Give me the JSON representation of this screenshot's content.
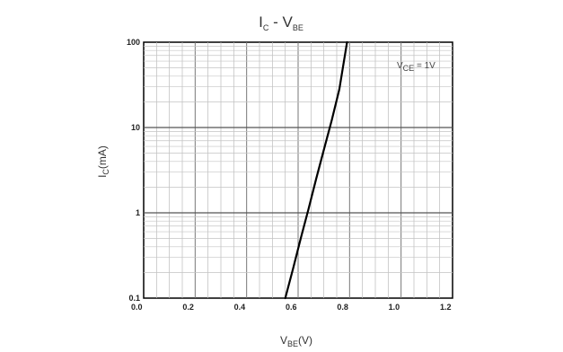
{
  "chart_data": {
    "type": "line",
    "title": "I",
    "title_sub_1": "C",
    "title_mid": " - V",
    "title_sub_2": "BE",
    "xlabel": "V",
    "xlabel_sub": "BE",
    "xlabel_unit": "(V)",
    "ylabel": "I",
    "ylabel_sub": "C",
    "ylabel_unit": "(mA)",
    "annotation": "V",
    "annotation_sub": "CE",
    "annotation_rest": " = 1V",
    "x_scale": "linear",
    "y_scale": "log",
    "xlim": [
      0.0,
      1.2
    ],
    "ylim": [
      0.1,
      100
    ],
    "grid": true,
    "x_ticks": [
      "0.0",
      "0.2",
      "0.4",
      "0.6",
      "0.8",
      "1.0",
      "1.2"
    ],
    "y_ticks": [
      "0.1",
      "1",
      "10",
      "100"
    ],
    "series": [
      {
        "x": [
          0.55,
          0.58,
          0.61,
          0.64,
          0.67,
          0.7,
          0.73,
          0.76,
          0.79
        ],
        "y": [
          0.1,
          0.22,
          0.5,
          1.1,
          2.5,
          5.5,
          12,
          28,
          100
        ]
      }
    ]
  }
}
